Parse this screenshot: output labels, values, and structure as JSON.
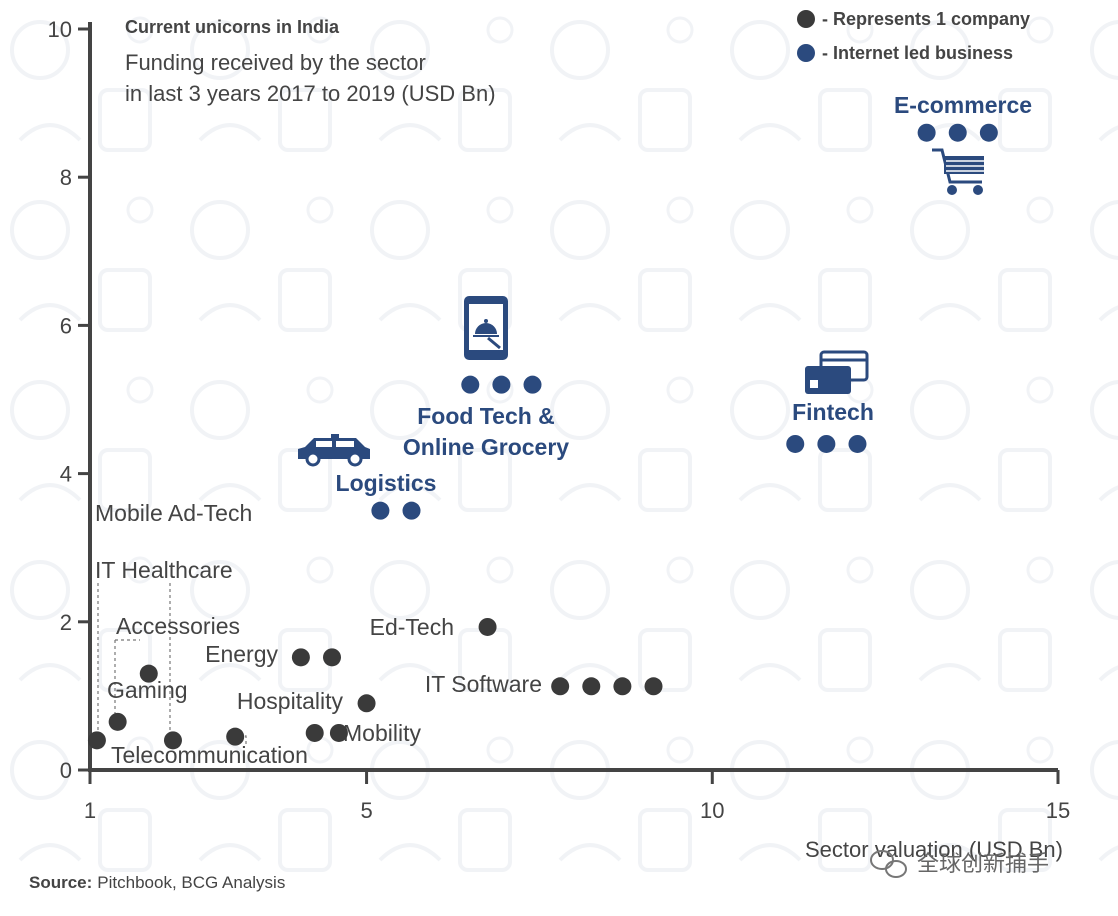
{
  "chart_data": {
    "type": "scatter",
    "title": "Current unicorns in India",
    "subtitle": [
      "Funding received by the sector",
      "in last 3 years 2017 to 2019 (USD Bn)"
    ],
    "xlabel": "Sector valuation (USD Bn)",
    "xlim": [
      1,
      15
    ],
    "ylim": [
      0,
      10
    ],
    "xticks": [
      1,
      5,
      10,
      15
    ],
    "yticks": [
      0,
      2,
      4,
      6,
      8,
      10
    ],
    "legend": [
      {
        "label": "- Represents 1 company",
        "color": "#3a3a3a"
      },
      {
        "label": "- Internet led business",
        "color": "#2b4a7e"
      }
    ],
    "colors": {
      "company": "#3a3a3a",
      "internet": "#2b4a7e"
    },
    "categories": [
      {
        "name": "E-commerce",
        "internet": true,
        "icon": "shopping-cart-icon",
        "points": [
          [
            13.1,
            8.6
          ],
          [
            13.55,
            8.6
          ],
          [
            14.0,
            8.6
          ]
        ]
      },
      {
        "name": "Food Tech & Online Grocery",
        "internet": true,
        "icon": "food-app-phone-icon",
        "points": [
          [
            6.5,
            5.2
          ],
          [
            6.95,
            5.2
          ],
          [
            7.4,
            5.2
          ]
        ]
      },
      {
        "name": "Fintech",
        "internet": true,
        "icon": "credit-card-icon",
        "points": [
          [
            11.2,
            4.4
          ],
          [
            11.65,
            4.4
          ],
          [
            12.1,
            4.4
          ]
        ]
      },
      {
        "name": "Logistics",
        "internet": true,
        "icon": "taxi-icon",
        "points": [
          [
            5.2,
            3.5
          ],
          [
            5.65,
            3.5
          ]
        ]
      },
      {
        "name": "Mobile Ad-Tech",
        "internet": false,
        "points": []
      },
      {
        "name": "IT Healthcare",
        "internet": false,
        "points": [
          [
            1.1,
            0.4
          ]
        ]
      },
      {
        "name": "Accessories",
        "internet": false,
        "points": [
          [
            1.85,
            1.3
          ]
        ]
      },
      {
        "name": "Gaming",
        "internet": false,
        "points": [
          [
            1.4,
            0.65
          ]
        ]
      },
      {
        "name": "Telecommunication",
        "internet": false,
        "points": [
          [
            2.2,
            0.4
          ],
          [
            3.1,
            0.45
          ]
        ]
      },
      {
        "name": "Energy",
        "internet": false,
        "points": [
          [
            4.05,
            1.52
          ],
          [
            4.5,
            1.52
          ]
        ]
      },
      {
        "name": "Hospitality",
        "internet": false,
        "points": [
          [
            5.0,
            0.9
          ]
        ]
      },
      {
        "name": "Mobility",
        "internet": false,
        "points": [
          [
            4.25,
            0.5
          ],
          [
            4.6,
            0.5
          ]
        ]
      },
      {
        "name": "Ed-Tech",
        "internet": false,
        "points": [
          [
            6.75,
            1.93
          ]
        ]
      },
      {
        "name": "IT Software",
        "internet": false,
        "points": [
          [
            7.8,
            1.13
          ],
          [
            8.25,
            1.13
          ],
          [
            8.7,
            1.13
          ],
          [
            9.15,
            1.13
          ]
        ]
      }
    ]
  },
  "source": {
    "label": "Source:",
    "text": "Pitchbook, BCG Analysis"
  },
  "watermark": "全球创新捕手"
}
